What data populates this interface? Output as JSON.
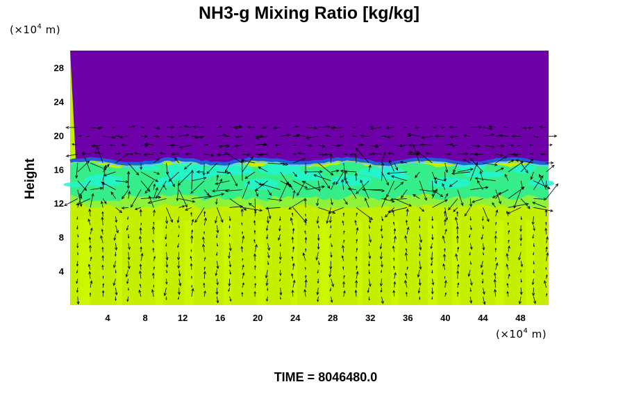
{
  "chart_data": {
    "type": "heatmap",
    "title": "NH3-g Mixing Ratio [kg/kg]",
    "ylabel": "Height",
    "x_unit": {
      "prefix": "(×10",
      "exponent": "4",
      "suffix": " m)"
    },
    "y_unit": {
      "prefix": "(×10",
      "exponent": "4",
      "suffix": " m)"
    },
    "xlim": [
      0,
      51
    ],
    "ylim": [
      0,
      30
    ],
    "x_ticks": [
      4,
      8,
      12,
      16,
      20,
      24,
      28,
      32,
      36,
      40,
      44,
      48
    ],
    "y_ticks": [
      4,
      8,
      12,
      16,
      20,
      24,
      28
    ],
    "layers": [
      {
        "name": "upper layer",
        "y_range": [
          17,
          30
        ],
        "color": "#6e00aa"
      },
      {
        "name": "interface band",
        "y_range": [
          16,
          17
        ],
        "color": "#1e5ed8"
      },
      {
        "name": "mid layer",
        "y_range": [
          12,
          16
        ],
        "color": "#35ee8a"
      },
      {
        "name": "lower layer",
        "y_range": [
          0,
          12
        ],
        "color": "#c4f000"
      }
    ],
    "vector_field": true,
    "legend": false,
    "grid": false
  },
  "footer": {
    "time_label": "TIME = 8046480.0"
  },
  "colors": {
    "upper": "#6e00aa",
    "interface": "#1e5ed8",
    "cyan": "#22f5d0",
    "mid": "#35ee8a",
    "transition": "#8ef23a",
    "lower": "#c4f000",
    "lower_bright": "#d2ff00"
  }
}
